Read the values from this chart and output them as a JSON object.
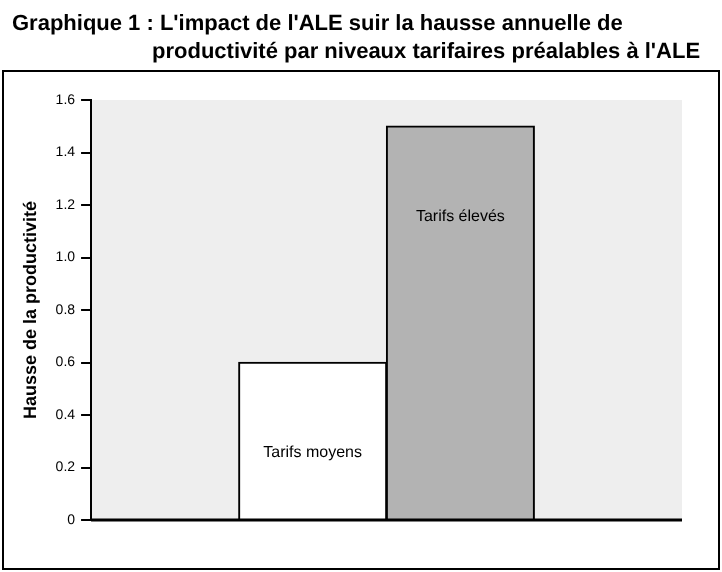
{
  "chart_data": {
    "type": "bar",
    "title": "Graphique 1 :  L'impact de l'ALE suir la hausse annuelle de productivité par niveaux tarifaires préalables à l'ALE",
    "ylabel": "Hausse de la productivité",
    "categories": [
      null,
      "Tarifs moyens",
      "Tarifs élevés",
      null
    ],
    "values": [
      0,
      0.6,
      1.5,
      0
    ],
    "colors": [
      "#000000",
      "#ffffff",
      "#b3b3b3",
      "#000000"
    ],
    "ylim": [
      0,
      1.6
    ],
    "yticks": [
      {
        "value": 0,
        "label": "0"
      },
      0.2,
      0.4,
      0.6,
      0.8,
      {
        "value": 1,
        "label": "1.0"
      },
      1.2,
      1.4,
      1.6
    ],
    "grid": false,
    "legend": false,
    "tick_labels": "y"
  }
}
